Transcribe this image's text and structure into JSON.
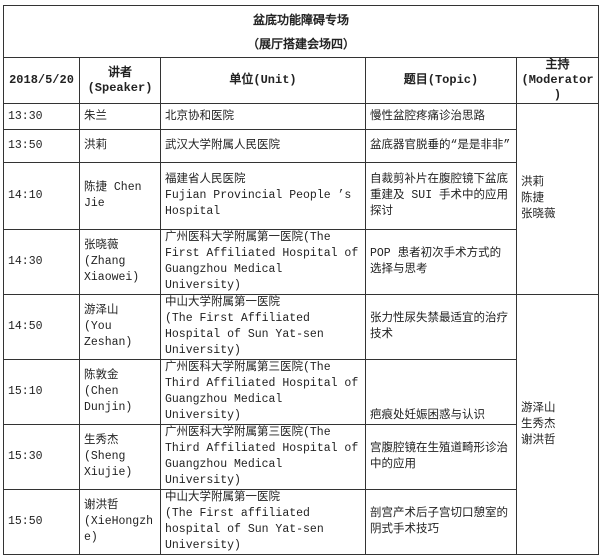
{
  "title": "盆底功能障碍专场",
  "subtitle": "（展厅搭建会场四）",
  "header": {
    "date": "2018/5/20",
    "speaker": "讲者\n(Speaker)",
    "unit": "单位(Unit)",
    "topic": "题目(Topic)",
    "moderator": "主持\n(Moderator)"
  },
  "rows": [
    {
      "time": "13:30",
      "speaker": "朱兰",
      "unit": "北京协和医院",
      "topic": "慢性盆腔疼痛诊治思路"
    },
    {
      "time": "13:50",
      "speaker": "洪莉",
      "unit": "武汉大学附属人民医院",
      "topic": "盆底器官脱垂的“是是非非”"
    },
    {
      "time": "14:10",
      "speaker": "陈捷 Chen Jie",
      "unit": "福建省人民医院\nFujian Provincial People ’s Hospital",
      "topic": "自裁剪补片在腹腔镜下盆底重建及 SUI 手术中的应用探讨"
    },
    {
      "time": "14:30",
      "speaker": "张晓薇\n(Zhang Xiaowei)",
      "unit": "广州医科大学附属第一医院(The First Affiliated Hospital of Guangzhou Medical University)",
      "topic": "POP 患者初次手术方式的选择与思考"
    },
    {
      "time": "14:50",
      "speaker": "游泽山\n(You Zeshan)",
      "unit": "中山大学附属第一医院\n(The First Affiliated Hospital of Sun Yat-sen University)",
      "topic": "张力性尿失禁最适宜的治疗技术"
    },
    {
      "time": "15:10",
      "speaker": "陈敦金\n(Chen Dunjin)",
      "unit": "广州医科大学附属第三医院(The Third Affiliated Hospital of Guangzhou Medical University)",
      "topic": "疤痕处妊娠困惑与认识"
    },
    {
      "time": "15:30",
      "speaker": "生秀杰\n(Sheng Xiujie)",
      "unit": "广州医科大学附属第三医院(The Third Affiliated Hospital of Guangzhou Medical University)",
      "topic": "宫腹腔镜在生殖道畸形诊治中的应用"
    },
    {
      "time": "15:50",
      "speaker": "谢洪哲\n(XieHongzhe)",
      "unit": "中山大学附属第一医院\n(The First affiliated hospital of Sun Yat-sen University)",
      "topic": "剖宫产术后子宫切口憩室的阴式手术技巧"
    }
  ],
  "moderators": [
    "洪莉\n陈捷\n张晓薇",
    "游泽山\n生秀杰\n谢洪哲"
  ]
}
